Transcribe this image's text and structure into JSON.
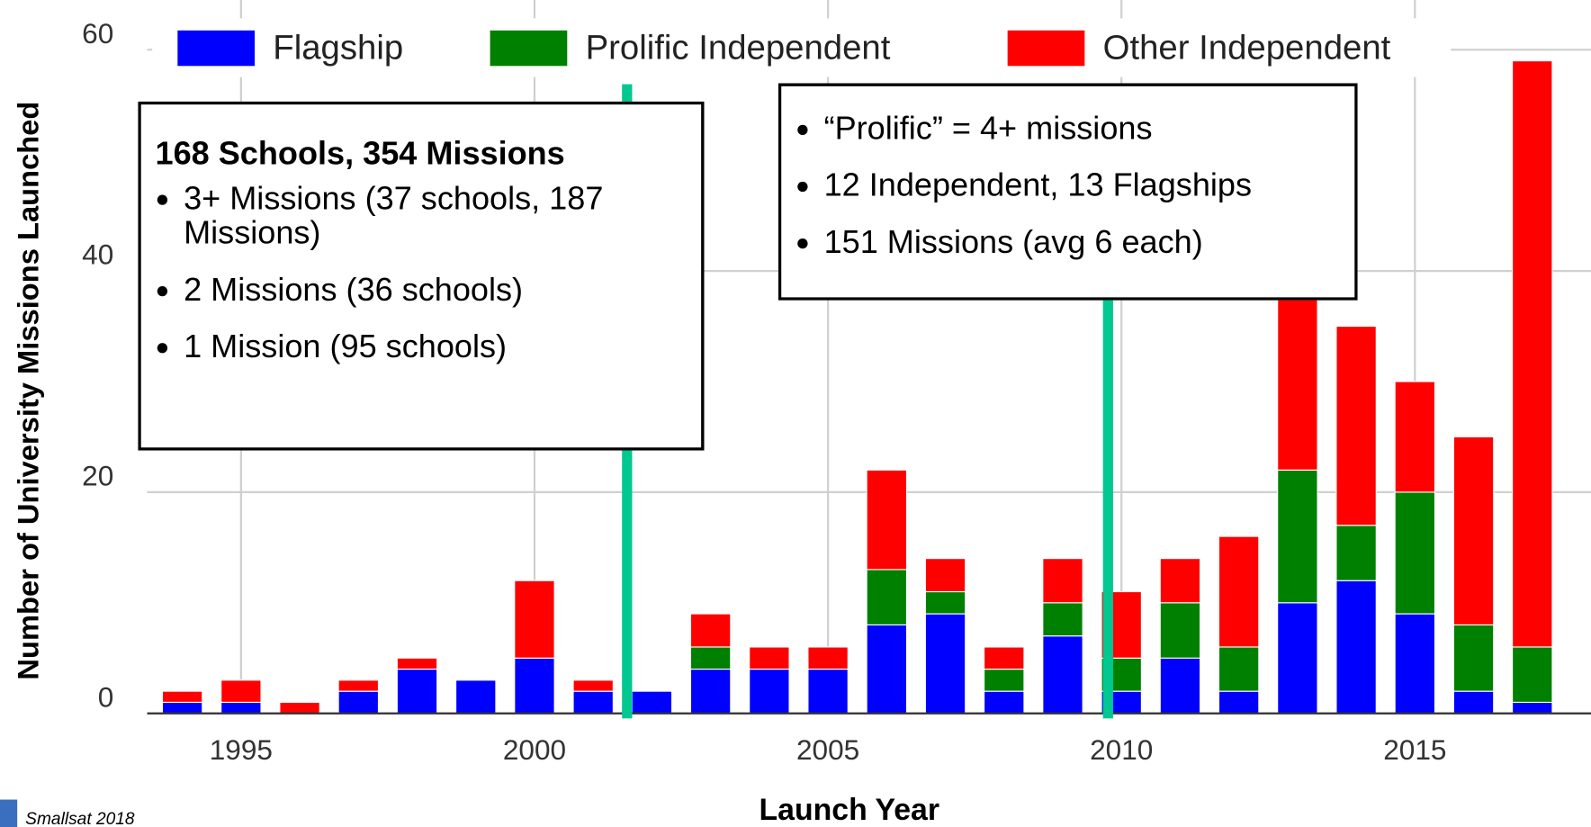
{
  "chart_data": {
    "type": "bar",
    "stacked": true,
    "x_label": "Launch Year",
    "y_label": "Number of University Missions Launched",
    "x": [
      1994,
      1995,
      1996,
      1997,
      1998,
      1999,
      2000,
      2001,
      2002,
      2003,
      2004,
      2005,
      2006,
      2007,
      2008,
      2009,
      2010,
      2011,
      2012,
      2013,
      2014,
      2015,
      2016,
      2017
    ],
    "series": [
      {
        "name": "Flagship",
        "color": "#0000ff",
        "values": [
          1,
          1,
          0,
          2,
          4,
          3,
          5,
          2,
          2,
          4,
          4,
          4,
          8,
          9,
          2,
          7,
          2,
          5,
          2,
          10,
          12,
          9,
          2,
          1
        ]
      },
      {
        "name": "Prolific Independent",
        "color": "#008000",
        "values": [
          0,
          0,
          0,
          0,
          0,
          0,
          0,
          0,
          0,
          2,
          0,
          0,
          5,
          2,
          2,
          3,
          3,
          5,
          4,
          12,
          5,
          11,
          6,
          5
        ]
      },
      {
        "name": "Other Independent",
        "color": "#ff0000",
        "values": [
          1,
          2,
          1,
          1,
          1,
          0,
          7,
          1,
          0,
          3,
          2,
          2,
          9,
          3,
          2,
          4,
          6,
          4,
          10,
          31,
          18,
          10,
          17,
          53
        ]
      }
    ],
    "xlim": [
      1993.4,
      2018
    ],
    "xticks": [
      1995,
      2000,
      2005,
      2010,
      2015
    ],
    "ylim": [
      0,
      64.5
    ],
    "yticks": [
      0,
      20,
      40,
      60
    ],
    "grid": true,
    "legend": "top",
    "annotations": [
      {
        "title": "168 Schools, 354 Missions",
        "items": [
          "3+ Missions (37 schools, 187 Missions)",
          "2 Missions (36 schools)",
          "1 Mission (95 schools)"
        ]
      },
      {
        "items": [
          "“Prolific” = 4+ missions",
          "12 Independent, 13 Flagships",
          "151 Missions (avg 6 each)"
        ]
      }
    ],
    "footer": "Smallsat 2018"
  }
}
